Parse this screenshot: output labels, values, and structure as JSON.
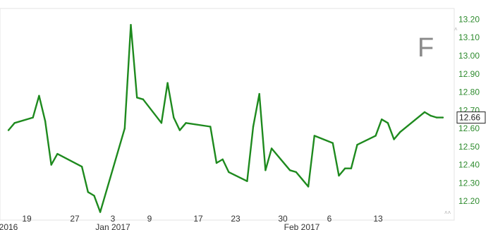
{
  "chart_data": {
    "type": "line",
    "symbol": "F",
    "line_color": "#1e8a1e",
    "tick_color": "#2e8b2e",
    "y_ticks": [
      "13.20",
      "13.10",
      "13.00",
      "12.90",
      "12.80",
      "12.70",
      "12.60",
      "12.50",
      "12.40",
      "12.30",
      "12.20"
    ],
    "ylim": [
      12.15,
      13.26
    ],
    "x_ticks": [
      "19",
      "27",
      "3",
      "9",
      "17",
      "23",
      "30",
      "6",
      "13"
    ],
    "period_labels": [
      "2016",
      "Jan 2017",
      "Feb 2017"
    ],
    "last_value": "12.66",
    "x_range": [
      "2016-12-15",
      "2017-02-24"
    ],
    "x": [
      "2016-12-15",
      "2016-12-16",
      "2016-12-19",
      "2016-12-20",
      "2016-12-21",
      "2016-12-22",
      "2016-12-23",
      "2016-12-27",
      "2016-12-28",
      "2016-12-29",
      "2016-12-30",
      "2017-01-03",
      "2017-01-04",
      "2017-01-05",
      "2017-01-06",
      "2017-01-09",
      "2017-01-10",
      "2017-01-11",
      "2017-01-12",
      "2017-01-13",
      "2017-01-17",
      "2017-01-18",
      "2017-01-19",
      "2017-01-20",
      "2017-01-23",
      "2017-01-24",
      "2017-01-25",
      "2017-01-26",
      "2017-01-27",
      "2017-01-30",
      "2017-01-31",
      "2017-02-01",
      "2017-02-02",
      "2017-02-03",
      "2017-02-06",
      "2017-02-07",
      "2017-02-08",
      "2017-02-09",
      "2017-02-10",
      "2017-02-13",
      "2017-02-14",
      "2017-02-15",
      "2017-02-16",
      "2017-02-17",
      "2017-02-21",
      "2017-02-22",
      "2017-02-23",
      "2017-02-24"
    ],
    "values": [
      12.59,
      12.63,
      12.66,
      12.78,
      12.64,
      12.4,
      12.46,
      12.39,
      12.25,
      12.23,
      12.14,
      12.6,
      13.17,
      12.77,
      12.76,
      12.63,
      12.85,
      12.66,
      12.59,
      12.63,
      12.61,
      12.41,
      12.43,
      12.36,
      12.31,
      12.61,
      12.79,
      12.37,
      12.49,
      12.37,
      12.36,
      12.32,
      12.28,
      12.56,
      12.52,
      12.34,
      12.38,
      12.38,
      12.51,
      12.56,
      12.65,
      12.63,
      12.54,
      12.58,
      12.69,
      12.67,
      12.66,
      12.66
    ]
  }
}
